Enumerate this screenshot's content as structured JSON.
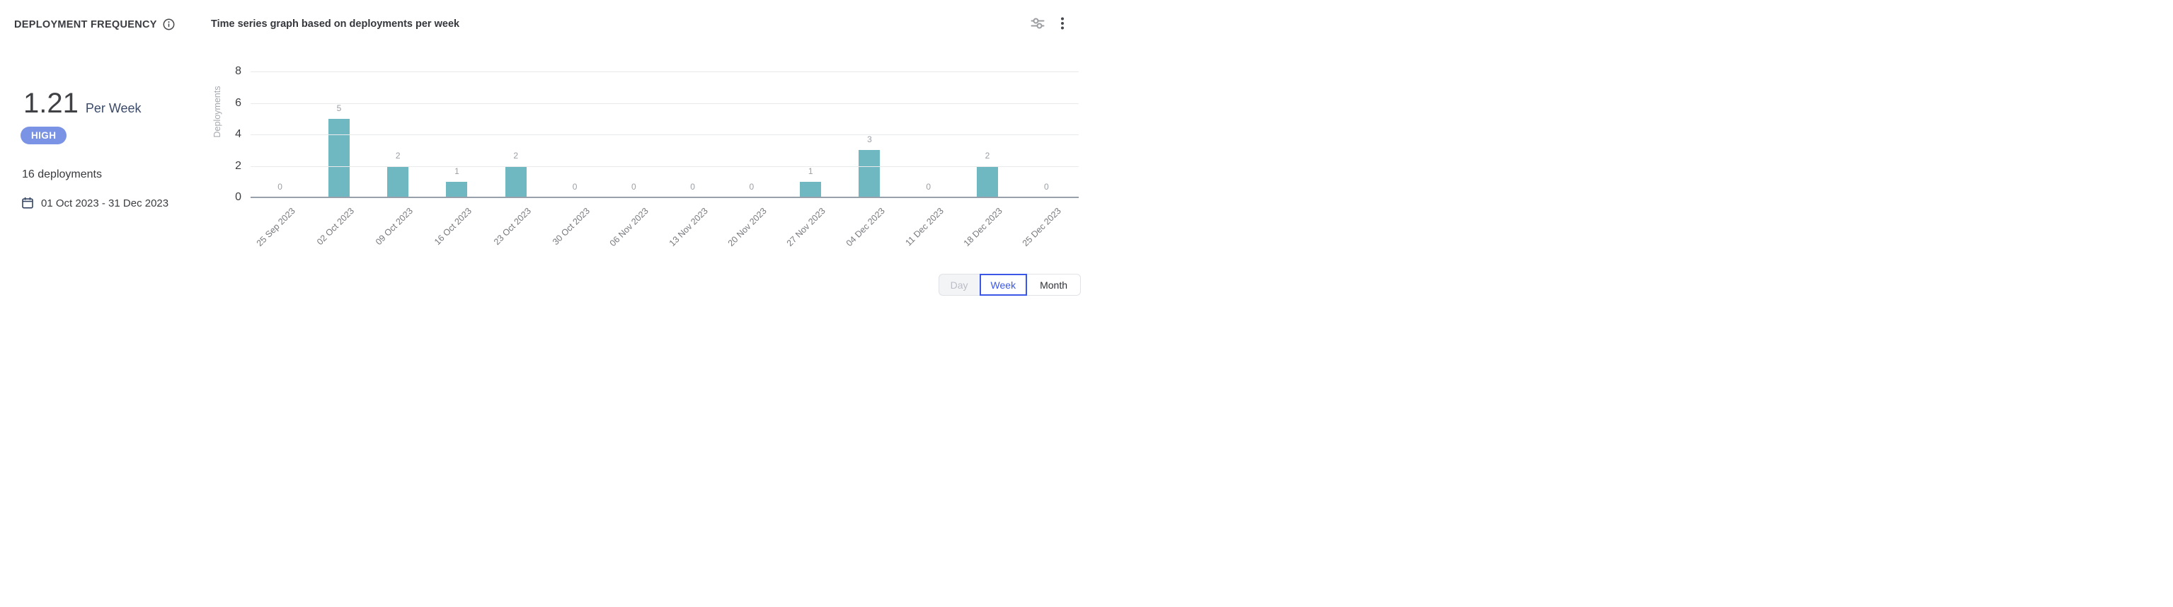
{
  "header": {
    "panel_title": "DEPLOYMENT FREQUENCY",
    "chart_title": "Time series graph based on deployments per week",
    "icons": [
      "info-icon",
      "tune-filters-icon",
      "kebab-menu-icon"
    ]
  },
  "stats": {
    "value": "1.21",
    "unit": "Per Week",
    "badge_label": "HIGH",
    "badge_color": "#7b93e4",
    "total_deployments": "16 deployments",
    "date_range": "01 Oct 2023 - 31 Dec 2023",
    "date_icon": "calendar-icon"
  },
  "chart_data": {
    "type": "bar",
    "title": "Time series graph based on deployments per week",
    "categories": [
      "25 Sep 2023",
      "02 Oct 2023",
      "09 Oct 2023",
      "16 Oct 2023",
      "23 Oct 2023",
      "30 Oct 2023",
      "06 Nov 2023",
      "13 Nov 2023",
      "20 Nov 2023",
      "27 Nov 2023",
      "04 Dec 2023",
      "11 Dec 2023",
      "18 Dec 2023",
      "25 Dec 2023"
    ],
    "values": [
      0,
      5,
      2,
      1,
      2,
      0,
      0,
      0,
      0,
      1,
      3,
      0,
      2,
      0
    ],
    "xlabel": "",
    "ylabel": "Deployments",
    "yticks": [
      0,
      2,
      4,
      6,
      8
    ],
    "ylim": [
      0,
      8
    ],
    "bar_color": "#6fb7c1",
    "grid": true,
    "value_labels": true,
    "legend": "none"
  },
  "toggle": {
    "options": [
      {
        "label": "Day",
        "state": "disabled"
      },
      {
        "label": "Week",
        "state": "selected"
      },
      {
        "label": "Month",
        "state": "default"
      }
    ],
    "selected_color": "#3a57e8"
  }
}
